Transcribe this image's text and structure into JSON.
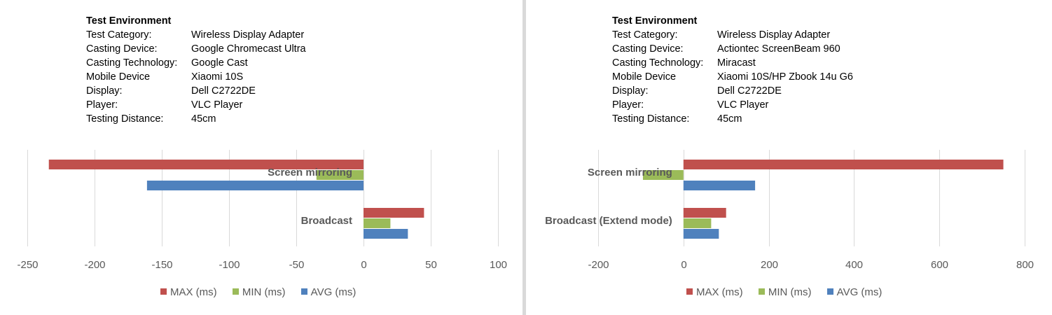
{
  "colors": {
    "max": "#c0504d",
    "min": "#9bbb59",
    "avg": "#4f81bd",
    "grid": "#d9d9d9",
    "axis_text": "#595959",
    "cat_text": "#595959"
  },
  "panels": [
    {
      "env": {
        "title": "Test Environment",
        "rows": [
          {
            "key": "Test Category:",
            "value": "Wireless Display Adapter"
          },
          {
            "key": "Casting Device:",
            "value": "Google Chromecast Ultra"
          },
          {
            "key": "Casting Technology:",
            "value": "Google Cast"
          },
          {
            "key": "Mobile Device",
            "value": "Xiaomi 10S"
          },
          {
            "key": "Display:",
            "value": "Dell C2722DE"
          },
          {
            "key": "Player:",
            "value": "VLC Player"
          },
          {
            "key": "Testing Distance:",
            "value": "45cm"
          }
        ]
      },
      "legend": [
        "MAX (ms)",
        "MIN (ms)",
        "AVG (ms)"
      ]
    },
    {
      "env": {
        "title": "Test Environment",
        "rows": [
          {
            "key": "Test Category:",
            "value": "Wireless Display Adapter"
          },
          {
            "key": "Casting Device:",
            "value": "Actiontec ScreenBeam 960"
          },
          {
            "key": "Casting Technology:",
            "value": "Miracast"
          },
          {
            "key": "Mobile Device",
            "value": "Xiaomi 10S/HP Zbook 14u G6"
          },
          {
            "key": "Display:",
            "value": "Dell C2722DE"
          },
          {
            "key": "Player:",
            "value": "VLC Player"
          },
          {
            "key": "Testing Distance:",
            "value": "45cm"
          }
        ]
      },
      "legend": [
        "MAX (ms)",
        "MIN (ms)",
        "AVG (ms)"
      ]
    }
  ],
  "chart_data": [
    {
      "type": "bar",
      "orientation": "horizontal",
      "categories": [
        "Screen mirroring",
        "Broadcast"
      ],
      "series": [
        {
          "name": "MAX (ms)",
          "values": [
            -234,
            45
          ]
        },
        {
          "name": "MIN (ms)",
          "values": [
            -35,
            20
          ]
        },
        {
          "name": "AVG (ms)",
          "values": [
            -161,
            33
          ]
        }
      ],
      "xlim": [
        -250,
        100
      ],
      "xticks": [
        -250,
        -200,
        -150,
        -100,
        -50,
        0,
        50,
        100
      ],
      "xtick_labels": [
        "-250",
        "-200",
        "-150",
        "-100",
        "-50",
        "0",
        "50",
        "100"
      ],
      "grid": true,
      "legend_position": "bottom"
    },
    {
      "type": "bar",
      "orientation": "horizontal",
      "categories": [
        "Screen mirroring",
        "Broadcast (Extend mode)"
      ],
      "series": [
        {
          "name": "MAX (ms)",
          "values": [
            750,
            100
          ]
        },
        {
          "name": "MIN (ms)",
          "values": [
            -95,
            65
          ]
        },
        {
          "name": "AVG (ms)",
          "values": [
            168,
            83
          ]
        }
      ],
      "xlim": [
        -200,
        800
      ],
      "xticks": [
        -200,
        0,
        200,
        400,
        600,
        800
      ],
      "xtick_labels": [
        "-200",
        "0",
        "200",
        "400",
        "600",
        "800"
      ],
      "grid": true,
      "legend_position": "bottom"
    }
  ]
}
